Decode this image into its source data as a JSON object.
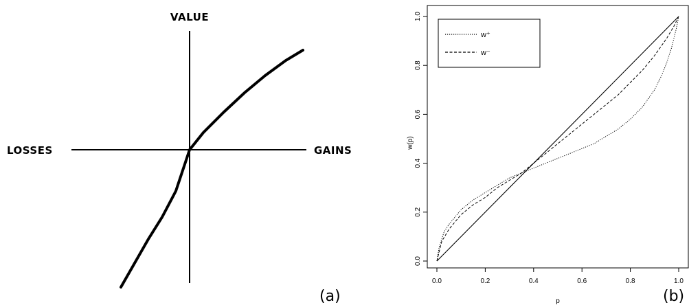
{
  "chart_data": [
    {
      "panel": "(a)",
      "type": "line",
      "title": "",
      "labels": {
        "top": "VALUE",
        "left": "LOSSES",
        "right": "GAINS"
      },
      "axes": {
        "ticks": "none",
        "grid": false
      },
      "series": [
        {
          "style": "solid-thick",
          "x": [
            -100,
            -80,
            -60,
            -40,
            -20,
            -5,
            0,
            20,
            50,
            80,
            110,
            140,
            165
          ],
          "y": [
            -200,
            -165,
            -130,
            -98,
            -60,
            -15,
            0,
            25,
            55,
            83,
            108,
            130,
            145
          ]
        }
      ]
    },
    {
      "panel": "(b)",
      "type": "line",
      "title": "",
      "xlabel": "p",
      "ylabel": "w(p)",
      "xlim": [
        0,
        1
      ],
      "ylim": [
        0,
        1
      ],
      "xticks": [
        "0.0",
        "0.2",
        "0.4",
        "0.6",
        "0.8",
        "1.0"
      ],
      "yticks": [
        "0.0",
        "0.2",
        "0.4",
        "0.6",
        "0.8",
        "1.0"
      ],
      "grid": false,
      "legend": {
        "placement": "top-left"
      },
      "series": [
        {
          "style": "solid",
          "p": [
            0,
            1
          ],
          "w": [
            0,
            1
          ]
        },
        {
          "name": "w⁺",
          "style": "dotted",
          "p": [
            0,
            0.01,
            0.03,
            0.05,
            0.1,
            0.15,
            0.2,
            0.25,
            0.3,
            0.35,
            0.4,
            0.45,
            0.5,
            0.55,
            0.6,
            0.65,
            0.7,
            0.75,
            0.8,
            0.85,
            0.9,
            0.93,
            0.95,
            0.97,
            0.99,
            1
          ],
          "w": [
            0,
            0.06,
            0.12,
            0.15,
            0.21,
            0.25,
            0.28,
            0.31,
            0.34,
            0.36,
            0.38,
            0.4,
            0.42,
            0.44,
            0.46,
            0.48,
            0.51,
            0.54,
            0.58,
            0.63,
            0.7,
            0.76,
            0.81,
            0.87,
            0.95,
            1
          ]
        },
        {
          "name": "w⁻",
          "style": "dashed",
          "p": [
            0,
            0.02,
            0.05,
            0.1,
            0.15,
            0.2,
            0.25,
            0.3,
            0.35,
            0.4,
            0.45,
            0.5,
            0.55,
            0.6,
            0.65,
            0.7,
            0.75,
            0.8,
            0.85,
            0.9,
            0.95,
            0.98,
            1
          ],
          "w": [
            0,
            0.08,
            0.13,
            0.19,
            0.23,
            0.26,
            0.3,
            0.33,
            0.36,
            0.4,
            0.44,
            0.48,
            0.52,
            0.56,
            0.6,
            0.64,
            0.68,
            0.73,
            0.78,
            0.84,
            0.91,
            0.96,
            1
          ]
        }
      ]
    }
  ]
}
